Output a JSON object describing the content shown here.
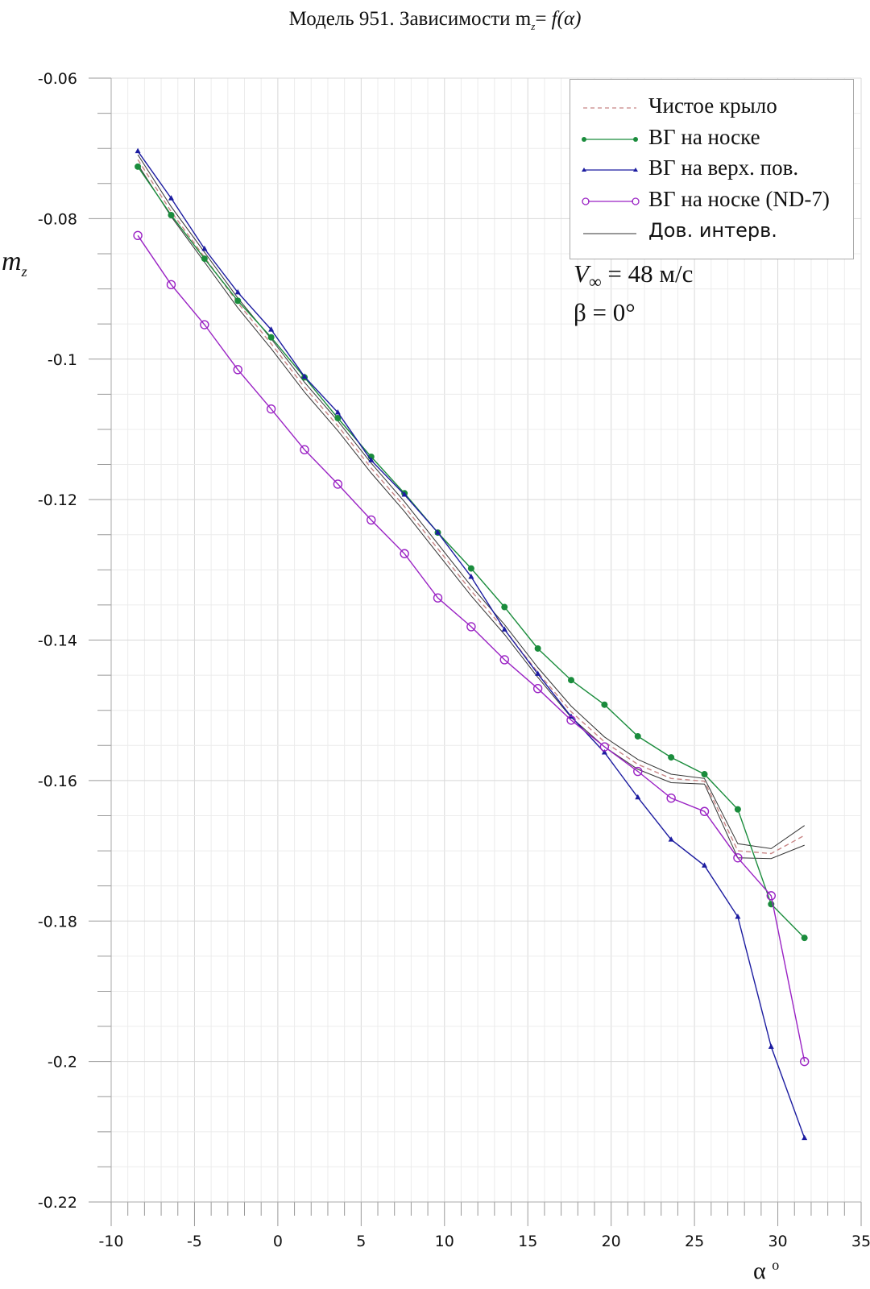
{
  "chart_data": {
    "type": "line",
    "title": {
      "prefix": "Модель 951. Зависимости m",
      "sub": "z",
      "eq": "= ",
      "func": "f(α)"
    },
    "xlabel": {
      "main": "α",
      "sup": "o"
    },
    "ylabel": {
      "main": "m",
      "sub": "z"
    },
    "xlim": [
      -10,
      35
    ],
    "ylim": [
      -0.22,
      -0.06
    ],
    "x_ticks": [
      -10,
      -5,
      0,
      5,
      10,
      15,
      20,
      25,
      30,
      35
    ],
    "y_ticks": [
      -0.06,
      -0.08,
      -0.1,
      -0.12,
      -0.14,
      -0.16,
      -0.18,
      -0.2,
      -0.22
    ],
    "grid": true,
    "legend_position": "top-right",
    "x": [
      -8.4,
      -6.4,
      -4.4,
      -2.4,
      -0.4,
      1.6,
      3.6,
      5.6,
      7.6,
      9.6,
      11.6,
      13.6,
      15.6,
      17.6,
      19.6,
      21.6,
      23.6,
      25.6,
      27.6,
      29.6,
      31.6
    ],
    "series": [
      {
        "name": "Чистое крыло",
        "color": "#c88585",
        "style": "dashed",
        "marker": "none",
        "values": [
          -0.0716,
          -0.079,
          -0.0855,
          -0.092,
          -0.0978,
          -0.104,
          -0.1095,
          -0.1155,
          -0.121,
          -0.127,
          -0.133,
          -0.1385,
          -0.1446,
          -0.1502,
          -0.1545,
          -0.1577,
          -0.1597,
          -0.1601,
          -0.17,
          -0.1704,
          -0.1678
        ]
      },
      {
        "name": "ВГ на носке",
        "color": "#1a8c3c",
        "style": "solid",
        "marker": "dot",
        "values": [
          -0.0726,
          -0.0795,
          -0.0857,
          -0.0917,
          -0.0969,
          -0.1026,
          -0.1084,
          -0.1139,
          -0.1191,
          -0.1247,
          -0.1298,
          -0.1353,
          -0.1412,
          -0.1457,
          -0.1492,
          -0.1537,
          -0.1567,
          -0.1591,
          -0.1641,
          -0.1776,
          -0.1824
        ]
      },
      {
        "name": "ВГ на верх. пов.",
        "color": "#1c1ca0",
        "style": "solid",
        "marker": "triangle",
        "values": [
          -0.0704,
          -0.0771,
          -0.0843,
          -0.0905,
          -0.0958,
          -0.1025,
          -0.1076,
          -0.1144,
          -0.1193,
          -0.1247,
          -0.131,
          -0.1385,
          -0.1448,
          -0.1509,
          -0.156,
          -0.1624,
          -0.1684,
          -0.1721,
          -0.1794,
          -0.1979,
          -0.2109
        ]
      },
      {
        "name": "ВГ на носке (ND-7)",
        "color": "#9a22c4",
        "style": "solid",
        "marker": "circle",
        "values": [
          -0.0824,
          -0.0894,
          -0.0951,
          -0.1015,
          -0.1071,
          -0.1129,
          -0.1178,
          -0.1229,
          -0.1277,
          -0.134,
          -0.1381,
          -0.1428,
          -0.1469,
          -0.1514,
          -0.1552,
          -0.1587,
          -0.1625,
          -0.1644,
          -0.171,
          -0.1764,
          -0.2
        ]
      }
    ],
    "confidence_interval": {
      "name": "Дов. интерв.",
      "color": "#333333",
      "of_series": "Чистое крыло",
      "halfwidth": [
        0.0007,
        0.0007,
        0.0007,
        0.0007,
        0.0007,
        0.0007,
        0.0007,
        0.0007,
        0.0007,
        0.0007,
        0.0007,
        0.0007,
        0.0007,
        0.0008,
        0.0007,
        0.0007,
        0.0006,
        0.0004,
        0.001,
        0.0007,
        0.0014
      ]
    },
    "annotations": {
      "v_main": "V",
      "v_sub": "∞",
      "v_rest": " = 48 м/с",
      "beta": "β = 0°"
    }
  }
}
